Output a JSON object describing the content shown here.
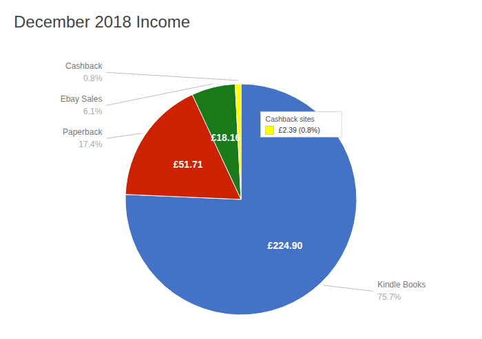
{
  "chart_data": {
    "type": "pie",
    "title": "December 2018 Income",
    "categories": [
      "Kindle Books",
      "Paperback",
      "Ebay Sales",
      "Cashback"
    ],
    "values": [
      224.9,
      51.71,
      18.16,
      2.39
    ],
    "value_labels": [
      "£224.90",
      "£51.71",
      "£18.16",
      null
    ],
    "shares": [
      75.7,
      17.4,
      6.1,
      0.8
    ],
    "share_labels": [
      "75.7%",
      "17.4%",
      "6.1%",
      "0.8%"
    ],
    "colors": [
      "#4472C4",
      "#CC2200",
      "#1a7a1a",
      "#FFFF00"
    ],
    "data_labels": true,
    "annotations": [
      {
        "text": "Cashback sites"
      },
      {
        "text": "£2.39 (0.8%)",
        "color": "#FFFF00"
      }
    ]
  }
}
